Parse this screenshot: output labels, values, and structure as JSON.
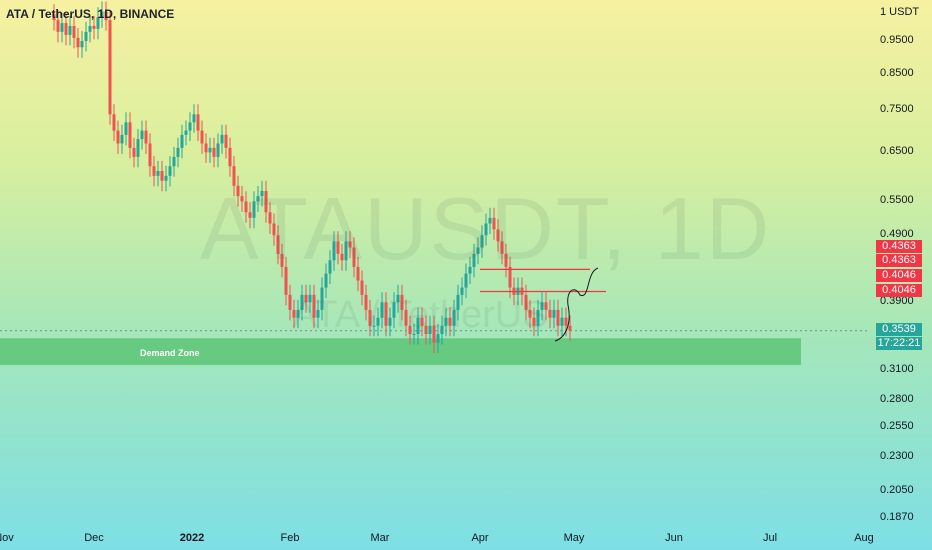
{
  "title": "ATA / TetherUS, 1D, BINANCE",
  "watermark": "ATAUSDT, 1D",
  "watermark_sub": "ATA / TetherUS",
  "currency_label": "1 USDT",
  "zone_label": "Demand Zone",
  "colors": {
    "up": "#26a69a",
    "down": "#ef5350",
    "zone": "#5cc676",
    "resistance": "#f23645"
  },
  "price_labels": [
    {
      "value": "0.4363",
      "color": "red"
    },
    {
      "value": "0.4363",
      "color": "red"
    },
    {
      "value": "0.4046",
      "color": "red"
    },
    {
      "value": "0.4046",
      "color": "red"
    },
    {
      "value": "0.3539",
      "color": "teal"
    },
    {
      "value": "17:22:21",
      "color": "teal"
    }
  ],
  "chart_data": {
    "type": "candlestick",
    "title": "ATA / TetherUS, 1D, BINANCE",
    "y_scale": "log",
    "y_ticks": [
      "0.9500",
      "0.8500",
      "0.7500",
      "0.6500",
      "0.5500",
      "0.4900",
      "0.3900",
      "0.3100",
      "0.2800",
      "0.2550",
      "0.2300",
      "0.2050",
      "0.1870"
    ],
    "x_ticks": [
      "Nov",
      "Dec",
      "2022",
      "Feb",
      "Mar",
      "Apr",
      "May",
      "Jun",
      "Jul",
      "Aug"
    ],
    "current_price": 0.3539,
    "countdown": "17:22:21",
    "levels": [
      0.4363,
      0.4046
    ],
    "demand_zone": [
      0.315,
      0.345
    ],
    "ohlc_series_description": "daily candles approx.",
    "series": [
      {
        "name": "close",
        "values": [
          1.02,
          0.98,
          1.01,
          0.97,
          1.0,
          0.96,
          0.93,
          0.95,
          0.98,
          1.0,
          0.99,
          1.03,
          1.05,
          1.02,
          0.74,
          0.7,
          0.67,
          0.69,
          0.72,
          0.66,
          0.64,
          0.68,
          0.7,
          0.67,
          0.62,
          0.6,
          0.61,
          0.59,
          0.6,
          0.62,
          0.64,
          0.66,
          0.69,
          0.7,
          0.72,
          0.74,
          0.7,
          0.67,
          0.65,
          0.66,
          0.64,
          0.67,
          0.69,
          0.66,
          0.62,
          0.58,
          0.56,
          0.55,
          0.53,
          0.52,
          0.55,
          0.56,
          0.57,
          0.53,
          0.51,
          0.49,
          0.46,
          0.44,
          0.4,
          0.38,
          0.37,
          0.38,
          0.4,
          0.39,
          0.4,
          0.37,
          0.38,
          0.41,
          0.43,
          0.45,
          0.48,
          0.46,
          0.45,
          0.48,
          0.47,
          0.44,
          0.42,
          0.4,
          0.38,
          0.36,
          0.36,
          0.37,
          0.39,
          0.36,
          0.37,
          0.39,
          0.4,
          0.38,
          0.36,
          0.35,
          0.35,
          0.37,
          0.36,
          0.35,
          0.36,
          0.34,
          0.35,
          0.36,
          0.37,
          0.36,
          0.38,
          0.4,
          0.41,
          0.43,
          0.44,
          0.46,
          0.47,
          0.49,
          0.51,
          0.52,
          0.5,
          0.48,
          0.46,
          0.44,
          0.41,
          0.4,
          0.41,
          0.4,
          0.38,
          0.37,
          0.36,
          0.38,
          0.39,
          0.38,
          0.37,
          0.38,
          0.36,
          0.37,
          0.36,
          0.354
        ]
      }
    ]
  }
}
